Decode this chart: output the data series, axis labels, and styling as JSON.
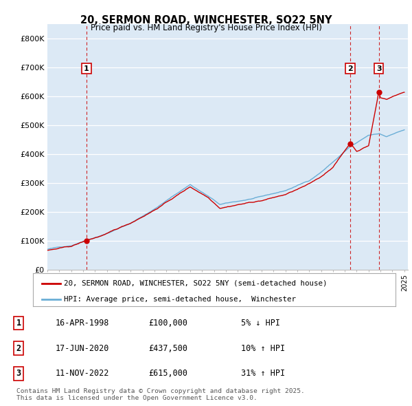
{
  "title": "20, SERMON ROAD, WINCHESTER, SO22 5NY",
  "subtitle": "Price paid vs. HM Land Registry's House Price Index (HPI)",
  "ylim": [
    0,
    850000
  ],
  "yticks": [
    0,
    100000,
    200000,
    300000,
    400000,
    500000,
    600000,
    700000,
    800000
  ],
  "ytick_labels": [
    "£0",
    "£100K",
    "£200K",
    "£300K",
    "£400K",
    "£500K",
    "£600K",
    "£700K",
    "£800K"
  ],
  "background_color": "#ffffff",
  "plot_bg_color": "#dce9f5",
  "grid_color": "#ffffff",
  "sale_color": "#cc0000",
  "hpi_color": "#6aaed6",
  "sale_dates": [
    1998.29,
    2020.46,
    2022.86
  ],
  "sale_prices": [
    100000,
    437500,
    615000
  ],
  "sale_labels": [
    "1",
    "2",
    "3"
  ],
  "table_rows": [
    [
      "1",
      "16-APR-1998",
      "£100,000",
      "5% ↓ HPI"
    ],
    [
      "2",
      "17-JUN-2020",
      "£437,500",
      "10% ↑ HPI"
    ],
    [
      "3",
      "11-NOV-2022",
      "£615,000",
      "31% ↑ HPI"
    ]
  ],
  "footnote": "Contains HM Land Registry data © Crown copyright and database right 2025.\nThis data is licensed under the Open Government Licence v3.0.",
  "legend_entries": [
    "20, SERMON ROAD, WINCHESTER, SO22 5NY (semi-detached house)",
    "HPI: Average price, semi-detached house,  Winchester"
  ],
  "vline_color": "#cc0000"
}
